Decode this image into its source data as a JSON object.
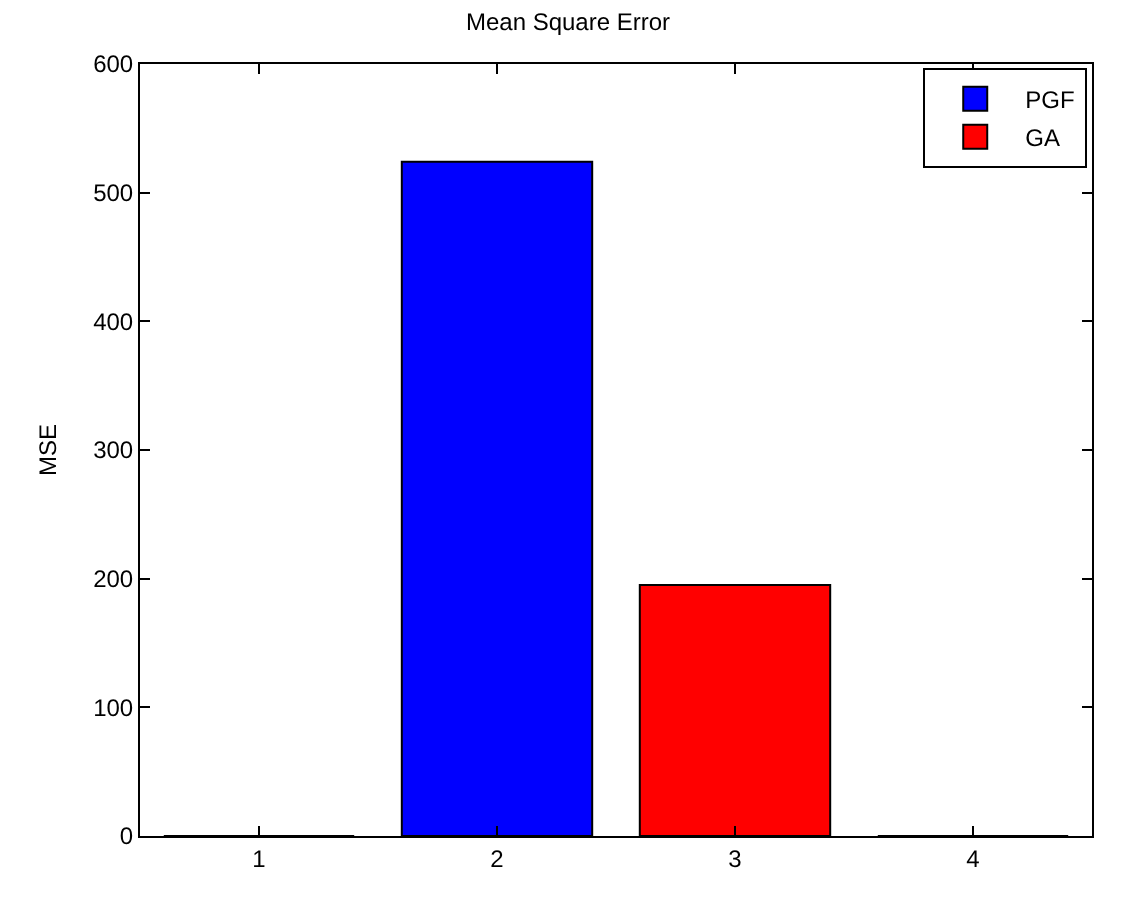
{
  "chart_data": {
    "type": "bar",
    "title": "Mean Square Error",
    "ylabel": "MSE",
    "x": [
      1,
      2,
      3,
      4
    ],
    "series": [
      {
        "name": "PGF",
        "color": "#0000ff",
        "values": [
          0,
          524,
          null,
          null
        ]
      },
      {
        "name": "GA",
        "color": "#ff0000",
        "values": [
          null,
          null,
          195,
          0
        ]
      }
    ],
    "xlim": [
      0.5,
      4.5
    ],
    "xticks": [
      1,
      2,
      3,
      4
    ],
    "ylim": [
      0,
      600
    ],
    "yticks": [
      0,
      100,
      200,
      300,
      400,
      500,
      600
    ],
    "legend": "top right"
  }
}
